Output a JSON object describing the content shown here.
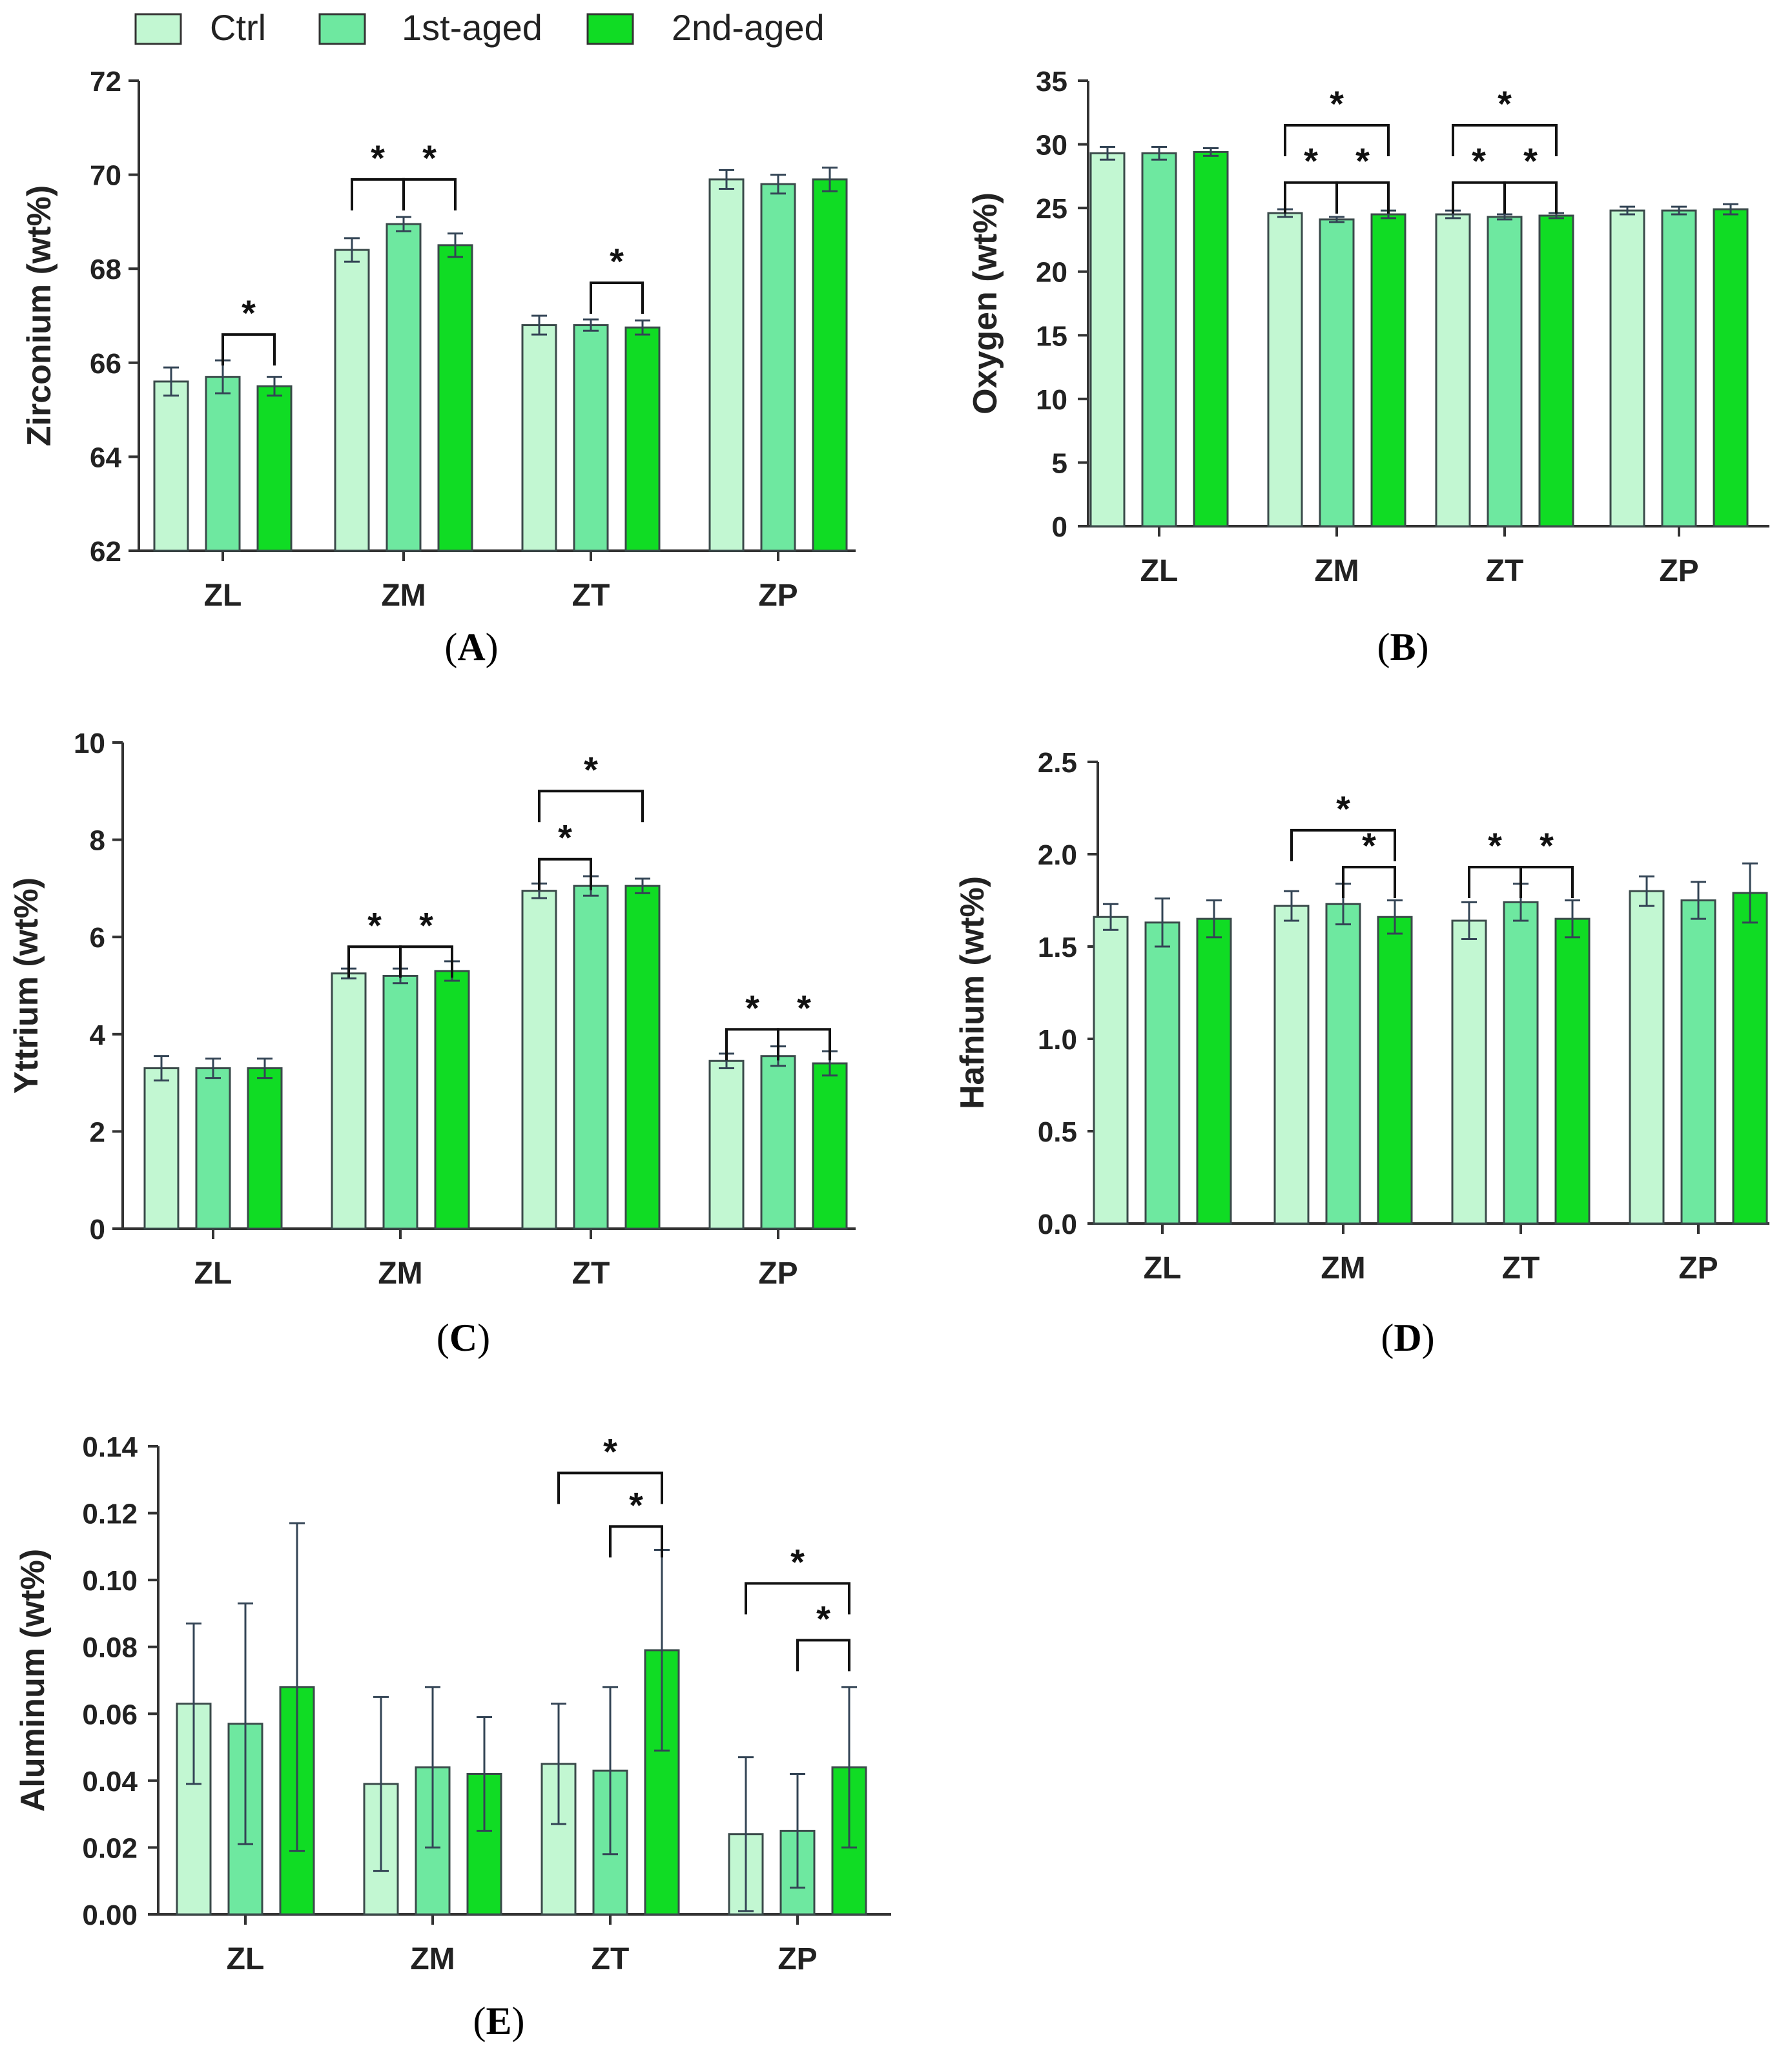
{
  "legend": [
    "Ctrl",
    "1st-aged",
    "2nd-aged"
  ],
  "colors": [
    "#c2f7d2",
    "#6ee8a0",
    "#10dc24"
  ],
  "chart_data": [
    {
      "panel": "A",
      "type": "bar",
      "ylabel": "Zirconium (wt%)",
      "categories": [
        "ZL",
        "ZM",
        "ZT",
        "ZP"
      ],
      "ylim": [
        62,
        72
      ],
      "yticks": [
        "62",
        "64",
        "66",
        "68",
        "70",
        "72"
      ],
      "series": [
        {
          "name": "Ctrl",
          "values": [
            65.6,
            68.4,
            66.8,
            69.9
          ],
          "errors": [
            0.3,
            0.25,
            0.2,
            0.2
          ]
        },
        {
          "name": "1st-aged",
          "values": [
            65.7,
            68.95,
            66.8,
            69.8
          ],
          "errors": [
            0.35,
            0.15,
            0.12,
            0.2
          ]
        },
        {
          "name": "2nd-aged",
          "values": [
            65.5,
            68.5,
            66.75,
            69.9
          ],
          "errors": [
            0.2,
            0.25,
            0.15,
            0.25
          ]
        }
      ],
      "significance": [
        {
          "cat": 0,
          "from": 1,
          "to": 2,
          "y": 66.6,
          "label": "*"
        },
        {
          "cat": 1,
          "from": 0,
          "to": 1,
          "y": 69.9,
          "label": "*"
        },
        {
          "cat": 1,
          "from": 1,
          "to": 2,
          "y": 69.9,
          "label": "*"
        },
        {
          "cat": 2,
          "from": 1,
          "to": 2,
          "y": 67.7,
          "label": "*"
        }
      ]
    },
    {
      "panel": "B",
      "type": "bar",
      "ylabel": "Oxygen (wt%)",
      "categories": [
        "ZL",
        "ZM",
        "ZT",
        "ZP"
      ],
      "ylim": [
        0,
        35
      ],
      "yticks": [
        "0",
        "5",
        "10",
        "15",
        "20",
        "25",
        "30",
        "35"
      ],
      "series": [
        {
          "name": "Ctrl",
          "values": [
            29.3,
            24.6,
            24.5,
            24.8
          ],
          "errors": [
            0.5,
            0.3,
            0.3,
            0.3
          ]
        },
        {
          "name": "1st-aged",
          "values": [
            29.3,
            24.1,
            24.3,
            24.8
          ],
          "errors": [
            0.5,
            0.2,
            0.2,
            0.3
          ]
        },
        {
          "name": "2nd-aged",
          "values": [
            29.4,
            24.5,
            24.4,
            24.9
          ],
          "errors": [
            0.3,
            0.3,
            0.2,
            0.4
          ]
        }
      ],
      "significance": [
        {
          "cat": 1,
          "from": 0,
          "to": 1,
          "y": 27.0,
          "label": "*"
        },
        {
          "cat": 1,
          "from": 1,
          "to": 2,
          "y": 27.0,
          "label": "*"
        },
        {
          "cat": 1,
          "from": 0,
          "to": 2,
          "y": 31.5,
          "label": "*"
        },
        {
          "cat": 2,
          "from": 0,
          "to": 1,
          "y": 27.0,
          "label": "*"
        },
        {
          "cat": 2,
          "from": 1,
          "to": 2,
          "y": 27.0,
          "label": "*"
        },
        {
          "cat": 2,
          "from": 0,
          "to": 2,
          "y": 31.5,
          "label": "*"
        }
      ]
    },
    {
      "panel": "C",
      "type": "bar",
      "ylabel": "Yttrium (wt%)",
      "categories": [
        "ZL",
        "ZM",
        "ZT",
        "ZP"
      ],
      "ylim": [
        0,
        10
      ],
      "yticks": [
        "0",
        "2",
        "4",
        "6",
        "8",
        "10"
      ],
      "series": [
        {
          "name": "Ctrl",
          "values": [
            3.3,
            5.25,
            6.95,
            3.45
          ],
          "errors": [
            0.25,
            0.1,
            0.15,
            0.15
          ]
        },
        {
          "name": "1st-aged",
          "values": [
            3.3,
            5.2,
            7.05,
            3.55
          ],
          "errors": [
            0.2,
            0.15,
            0.2,
            0.2
          ]
        },
        {
          "name": "2nd-aged",
          "values": [
            3.3,
            5.3,
            7.05,
            3.4
          ],
          "errors": [
            0.2,
            0.2,
            0.15,
            0.25
          ]
        }
      ],
      "significance": [
        {
          "cat": 1,
          "from": 0,
          "to": 1,
          "y": 5.8,
          "label": "*"
        },
        {
          "cat": 1,
          "from": 1,
          "to": 2,
          "y": 5.8,
          "label": "*"
        },
        {
          "cat": 2,
          "from": 0,
          "to": 1,
          "y": 7.6,
          "label": "*"
        },
        {
          "cat": 2,
          "from": 0,
          "to": 2,
          "y": 9.0,
          "label": "*"
        },
        {
          "cat": 3,
          "from": 0,
          "to": 1,
          "y": 4.1,
          "label": "*"
        },
        {
          "cat": 3,
          "from": 1,
          "to": 2,
          "y": 4.1,
          "label": "*"
        }
      ]
    },
    {
      "panel": "D",
      "type": "bar",
      "ylabel": "Hafnium (wt%)",
      "categories": [
        "ZL",
        "ZM",
        "ZT",
        "ZP"
      ],
      "ylim": [
        0,
        2.5
      ],
      "yticks": [
        "0.0",
        "0.5",
        "1.0",
        "1.5",
        "2.0",
        "2.5"
      ],
      "series": [
        {
          "name": "Ctrl",
          "values": [
            1.66,
            1.72,
            1.64,
            1.8
          ],
          "errors": [
            0.07,
            0.08,
            0.1,
            0.08
          ]
        },
        {
          "name": "1st-aged",
          "values": [
            1.63,
            1.73,
            1.74,
            1.75
          ],
          "errors": [
            0.13,
            0.11,
            0.1,
            0.1
          ]
        },
        {
          "name": "2nd-aged",
          "values": [
            1.65,
            1.66,
            1.65,
            1.79
          ],
          "errors": [
            0.1,
            0.09,
            0.1,
            0.16
          ]
        }
      ],
      "significance": [
        {
          "cat": 1,
          "from": 1,
          "to": 2,
          "y": 1.93,
          "label": "*"
        },
        {
          "cat": 1,
          "from": 0,
          "to": 2,
          "y": 2.13,
          "label": "*"
        },
        {
          "cat": 2,
          "from": 0,
          "to": 1,
          "y": 1.93,
          "label": "*"
        },
        {
          "cat": 2,
          "from": 1,
          "to": 2,
          "y": 1.93,
          "label": "*"
        }
      ]
    },
    {
      "panel": "E",
      "type": "bar",
      "ylabel": "Aluminum (wt%)",
      "categories": [
        "ZL",
        "ZM",
        "ZT",
        "ZP"
      ],
      "ylim": [
        0,
        0.14
      ],
      "yticks": [
        "0.00",
        "0.02",
        "0.04",
        "0.06",
        "0.08",
        "0.10",
        "0.12",
        "0.14"
      ],
      "series": [
        {
          "name": "Ctrl",
          "values": [
            0.063,
            0.039,
            0.045,
            0.024
          ],
          "errors": [
            0.024,
            0.026,
            0.018,
            0.023
          ]
        },
        {
          "name": "1st-aged",
          "values": [
            0.057,
            0.044,
            0.043,
            0.025
          ],
          "errors": [
            0.036,
            0.024,
            0.025,
            0.017
          ]
        },
        {
          "name": "2nd-aged",
          "values": [
            0.068,
            0.042,
            0.079,
            0.044
          ],
          "errors": [
            0.049,
            0.017,
            0.03,
            0.024
          ]
        }
      ],
      "significance": [
        {
          "cat": 2,
          "from": 1,
          "to": 2,
          "y": 0.116,
          "label": "*"
        },
        {
          "cat": 2,
          "from": 0,
          "to": 2,
          "y": 0.132,
          "label": "*"
        },
        {
          "cat": 3,
          "from": 1,
          "to": 2,
          "y": 0.082,
          "label": "*"
        },
        {
          "cat": 3,
          "from": 0,
          "to": 2,
          "y": 0.099,
          "label": "*"
        }
      ]
    }
  ],
  "panel_labels": [
    "A",
    "B",
    "C",
    "D",
    "E"
  ]
}
